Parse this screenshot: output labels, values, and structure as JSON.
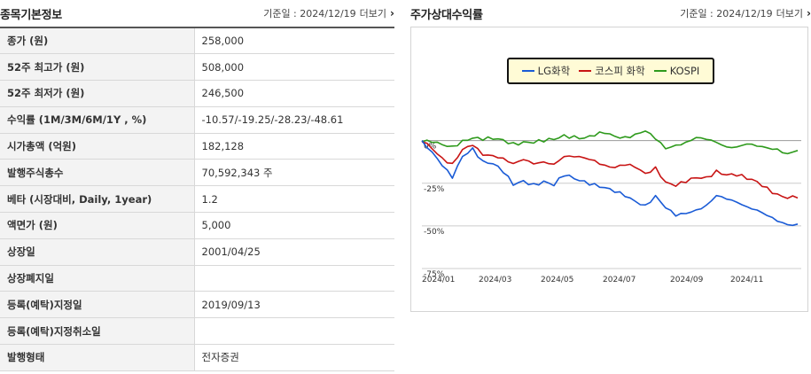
{
  "left": {
    "title": "종목기본정보",
    "date_label": "기준일 : 2024/12/19",
    "more": "더보기",
    "rows": [
      {
        "label": "종가 (원)",
        "value": "258,000"
      },
      {
        "label": "52주 최고가 (원)",
        "value": "508,000"
      },
      {
        "label": "52주 최저가 (원)",
        "value": "246,500"
      },
      {
        "label": "수익률 (1M/3M/6M/1Y , %)",
        "value": "-10.57/-19.25/-28.23/-48.61"
      },
      {
        "label": "시가총액 (억원)",
        "value": "182,128"
      },
      {
        "label": "발행주식총수",
        "value": "70,592,343 주"
      },
      {
        "label": "베타 (시장대비, Daily, 1year)",
        "value": "1.2"
      },
      {
        "label": "액면가 (원)",
        "value": "5,000"
      },
      {
        "label": "상장일",
        "value": "2001/04/25"
      },
      {
        "label": "상장폐지일",
        "value": ""
      },
      {
        "label": "등록(예탁)지정일",
        "value": "2019/09/13"
      },
      {
        "label": "등록(예탁)지정취소일",
        "value": ""
      },
      {
        "label": "발행형태",
        "value": "전자증권"
      }
    ]
  },
  "right": {
    "title": "주가상대수익률",
    "date_label": "기준일 : 2024/12/19",
    "more": "더보기"
  },
  "chart_data": {
    "type": "line",
    "title": "",
    "xlabel": "",
    "ylabel": "",
    "x_ticks": [
      "2024/01",
      "2024/03",
      "2024/05",
      "2024/07",
      "2024/09",
      "2024/11"
    ],
    "y_ticks": [
      "0%",
      "-25%",
      "-50%",
      "-75%"
    ],
    "ylim": [
      -75,
      5
    ],
    "legend_position": "top-center",
    "series": [
      {
        "name": "LG화학",
        "color": "#1a5bd6",
        "values": [
          0,
          -6,
          -14,
          -22,
          -10,
          -5,
          -12,
          -13,
          -18,
          -26,
          -24,
          -26,
          -24,
          -26,
          -20,
          -22,
          -24,
          -26,
          -28,
          -30,
          -32,
          -35,
          -38,
          -33,
          -40,
          -44,
          -42,
          -40,
          -38,
          -33,
          -35,
          -36,
          -38,
          -40,
          -44,
          -48,
          -50,
          -49
        ]
      },
      {
        "name": "코스피 화학",
        "color": "#c81414",
        "values": [
          0,
          -4,
          -10,
          -14,
          -6,
          -3,
          -8,
          -8,
          -10,
          -14,
          -12,
          -14,
          -12,
          -13,
          -9,
          -10,
          -11,
          -12,
          -14,
          -15,
          -14,
          -16,
          -20,
          -16,
          -24,
          -26,
          -24,
          -22,
          -22,
          -18,
          -20,
          -20,
          -22,
          -24,
          -28,
          -32,
          -34,
          -33
        ]
      },
      {
        "name": "KOSPI",
        "color": "#2e9a1c",
        "values": [
          0,
          -1,
          -3,
          -4,
          0,
          2,
          1,
          1,
          0,
          -2,
          -1,
          -1,
          0,
          1,
          3,
          2,
          1,
          3,
          5,
          3,
          2,
          3,
          5,
          1,
          -4,
          -2,
          -1,
          1,
          0,
          -1,
          -3,
          -3,
          -2,
          -4,
          -5,
          -5,
          -7,
          -5
        ]
      }
    ]
  }
}
